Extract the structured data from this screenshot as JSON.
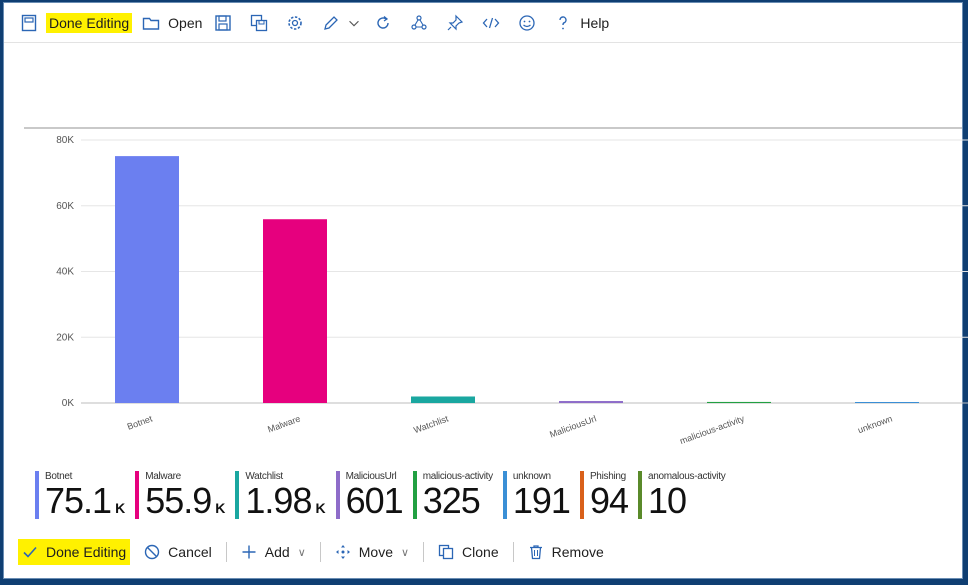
{
  "toolbar": {
    "done_editing": "Done Editing",
    "open": "Open",
    "help": "Help",
    "icons": [
      "edit-mode-icon",
      "open-icon",
      "save-icon",
      "save-copy-icon",
      "settings-gear-icon",
      "pencil-icon",
      "chevron-down-icon",
      "refresh-icon",
      "share-icon",
      "pin-icon",
      "code-icon",
      "smiley-icon",
      "help-icon"
    ]
  },
  "chart_data": {
    "type": "bar",
    "categories": [
      "Botnet",
      "Malware",
      "Watchlist",
      "MaliciousUrl",
      "malicious-activity",
      "unknown"
    ],
    "values": [
      75100,
      55900,
      1980,
      601,
      325,
      191
    ],
    "ylim": [
      0,
      80000
    ],
    "yticks": [
      "0K",
      "20K",
      "40K",
      "60K",
      "80K"
    ],
    "colors": [
      "#6b7ff0",
      "#e6007e",
      "#1aa7a0",
      "#8e6cc9",
      "#22a042",
      "#3a8fd6"
    ],
    "grid": true
  },
  "legend": [
    {
      "name": "Botnet",
      "value": "75.1",
      "unit": "K",
      "color": "#6b7ff0"
    },
    {
      "name": "Malware",
      "value": "55.9",
      "unit": "K",
      "color": "#e6007e"
    },
    {
      "name": "Watchlist",
      "value": "1.98",
      "unit": "K",
      "color": "#1aa7a0"
    },
    {
      "name": "MaliciousUrl",
      "value": "601",
      "unit": "",
      "color": "#8e6cc9"
    },
    {
      "name": "malicious-activity",
      "value": "325",
      "unit": "",
      "color": "#22a042"
    },
    {
      "name": "unknown",
      "value": "191",
      "unit": "",
      "color": "#3a8fd6"
    },
    {
      "name": "Phishing",
      "value": "94",
      "unit": "",
      "color": "#d9601a"
    },
    {
      "name": "anomalous-activity",
      "value": "10",
      "unit": "",
      "color": "#5a8a2a"
    }
  ],
  "bottom": {
    "done_editing": "Done Editing",
    "cancel": "Cancel",
    "add": "Add",
    "move": "Move",
    "clone": "Clone",
    "remove": "Remove"
  }
}
